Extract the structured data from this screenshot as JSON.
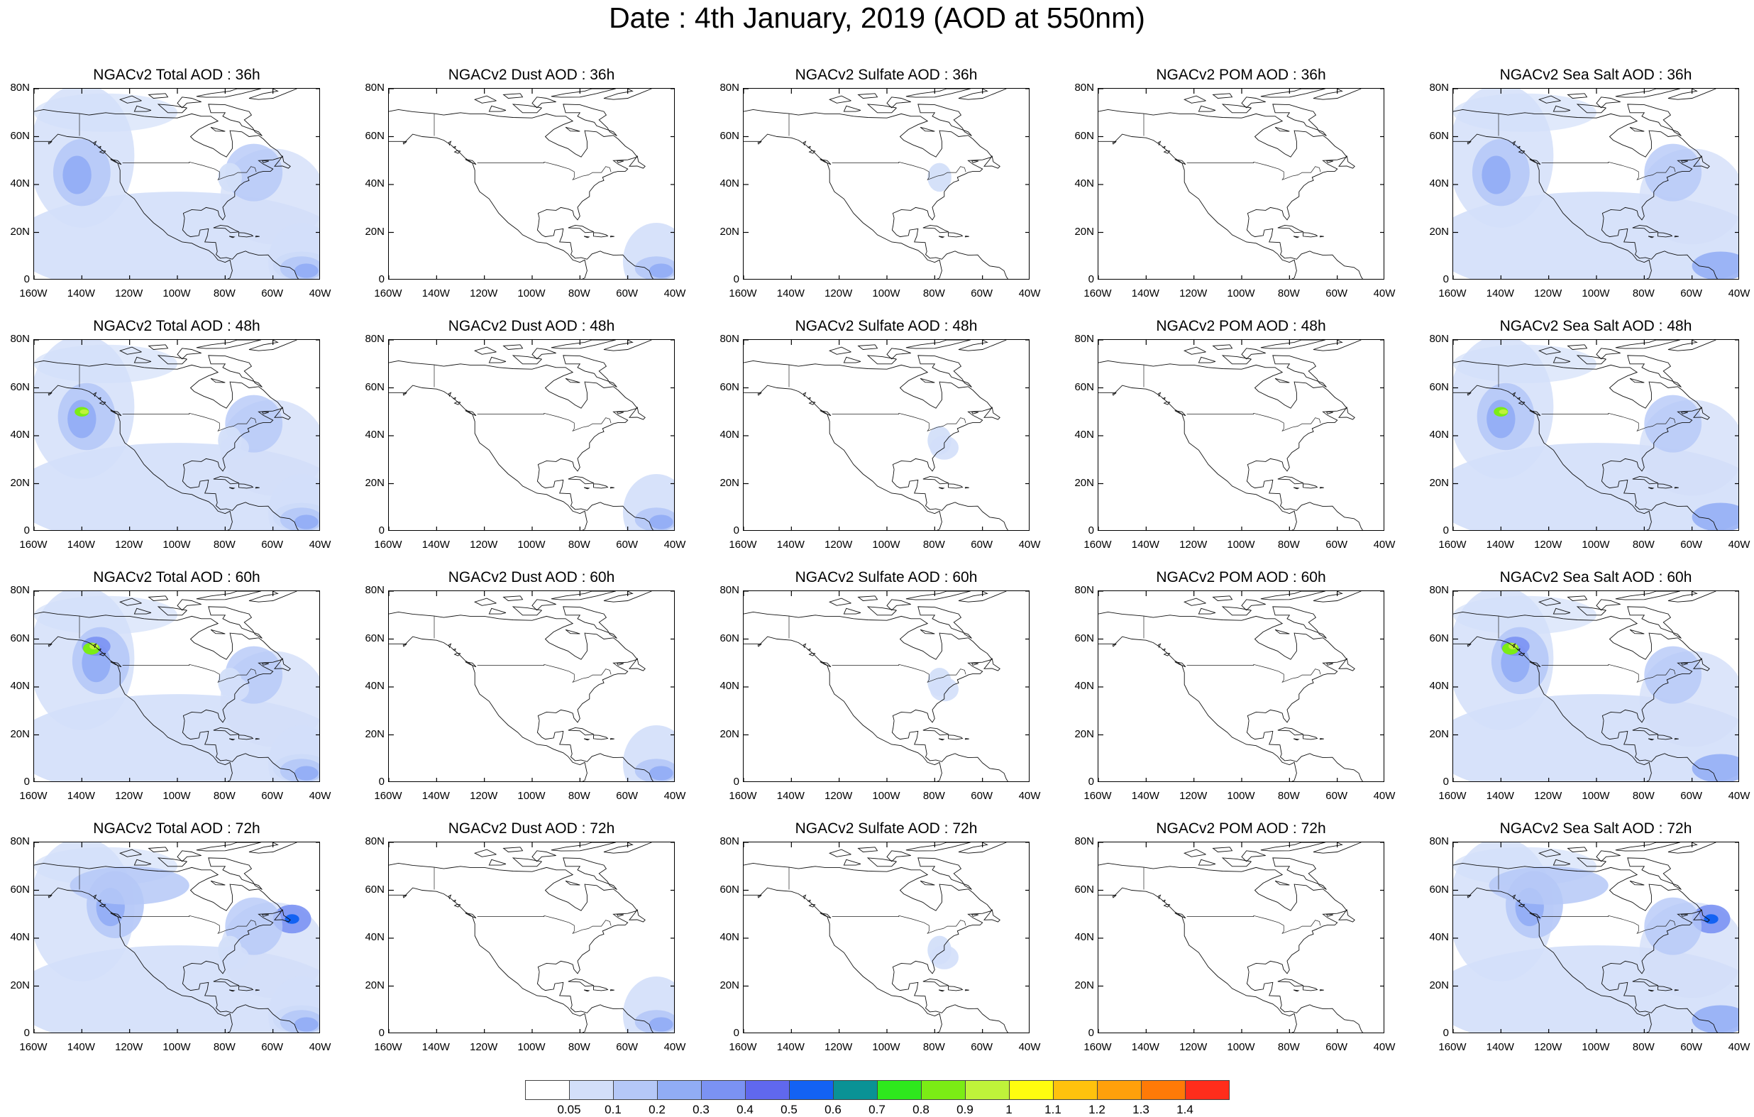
{
  "title": "Date : 4th January, 2019 (AOD at 550nm)",
  "panels": [
    [
      "NGACv2 Total AOD : 36h",
      "NGACv2 Dust AOD : 36h",
      "NGACv2 Sulfate AOD : 36h",
      "NGACv2 POM AOD : 36h",
      "NGACv2 Sea Salt AOD : 36h"
    ],
    [
      "NGACv2 Total AOD : 48h",
      "NGACv2 Dust AOD : 48h",
      "NGACv2 Sulfate AOD : 48h",
      "NGACv2 POM AOD : 48h",
      "NGACv2 Sea Salt AOD : 48h"
    ],
    [
      "NGACv2 Total AOD : 60h",
      "NGACv2 Dust AOD : 60h",
      "NGACv2 Sulfate AOD : 60h",
      "NGACv2 POM AOD : 60h",
      "NGACv2 Sea Salt AOD : 60h"
    ],
    [
      "NGACv2 Total AOD : 72h",
      "NGACv2 Dust AOD : 72h",
      "NGACv2 Sulfate AOD : 72h",
      "NGACv2 POM AOD : 72h",
      "NGACv2 Sea Salt  AOD : 72h"
    ]
  ],
  "y_ticks": [
    "80N",
    "60N",
    "40N",
    "20N",
    "0"
  ],
  "x_ticks": [
    "160W",
    "140W",
    "120W",
    "100W",
    "80W",
    "60W",
    "40W"
  ],
  "map_extent": {
    "lon": [
      -160,
      -40
    ],
    "lat": [
      0,
      80
    ]
  },
  "colorbar": {
    "colors": [
      "#ffffff",
      "#d3dff9",
      "#b5c8f7",
      "#91acf5",
      "#7b92f3",
      "#6068ee",
      "#1362f3",
      "#0a9295",
      "#2ee81d",
      "#7bec15",
      "#bff33a",
      "#fffd0f",
      "#ffc20d",
      "#ffa00b",
      "#ff7a07",
      "#ff2d1b"
    ],
    "labels": [
      "0.05",
      "0.1",
      "0.2",
      "0.3",
      "0.4",
      "0.5",
      "0.6",
      "0.7",
      "0.8",
      "0.9",
      "1",
      "1.1",
      "1.2",
      "1.3",
      "1.4"
    ]
  }
}
